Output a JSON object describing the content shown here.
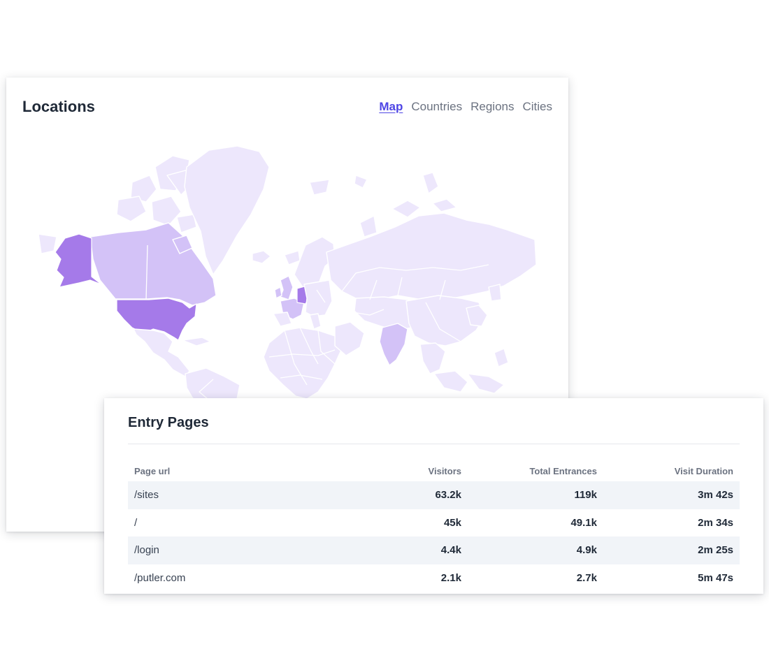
{
  "locations": {
    "title": "Locations",
    "tabs": [
      {
        "label": "Map",
        "active": true
      },
      {
        "label": "Countries",
        "active": false
      },
      {
        "label": "Regions",
        "active": false
      },
      {
        "label": "Cities",
        "active": false
      }
    ],
    "map": {
      "highlight_colors": {
        "strong": "#a57ae9",
        "medium": "#d3c2f7",
        "base": "#ede7fc"
      },
      "strong_countries": [
        "United States",
        "Germany"
      ],
      "medium_countries": [
        "Canada",
        "United Kingdom",
        "France",
        "India"
      ]
    }
  },
  "entry_pages": {
    "title": "Entry Pages",
    "columns": {
      "url": "Page url",
      "visitors": "Visitors",
      "entrances": "Total Entrances",
      "duration": "Visit Duration"
    },
    "rows": [
      {
        "url": "/sites",
        "visitors": "63.2k",
        "entrances": "119k",
        "duration": "3m 42s"
      },
      {
        "url": "/",
        "visitors": "45k",
        "entrances": "49.1k",
        "duration": "2m 34s"
      },
      {
        "url": "/login",
        "visitors": "4.4k",
        "entrances": "4.9k",
        "duration": "2m 25s"
      },
      {
        "url": "/putler.com",
        "visitors": "2.1k",
        "entrances": "2.7k",
        "duration": "5m 47s"
      }
    ]
  },
  "colors": {
    "accent": "#4f46e5",
    "row_shade": "#f1f4f8"
  }
}
